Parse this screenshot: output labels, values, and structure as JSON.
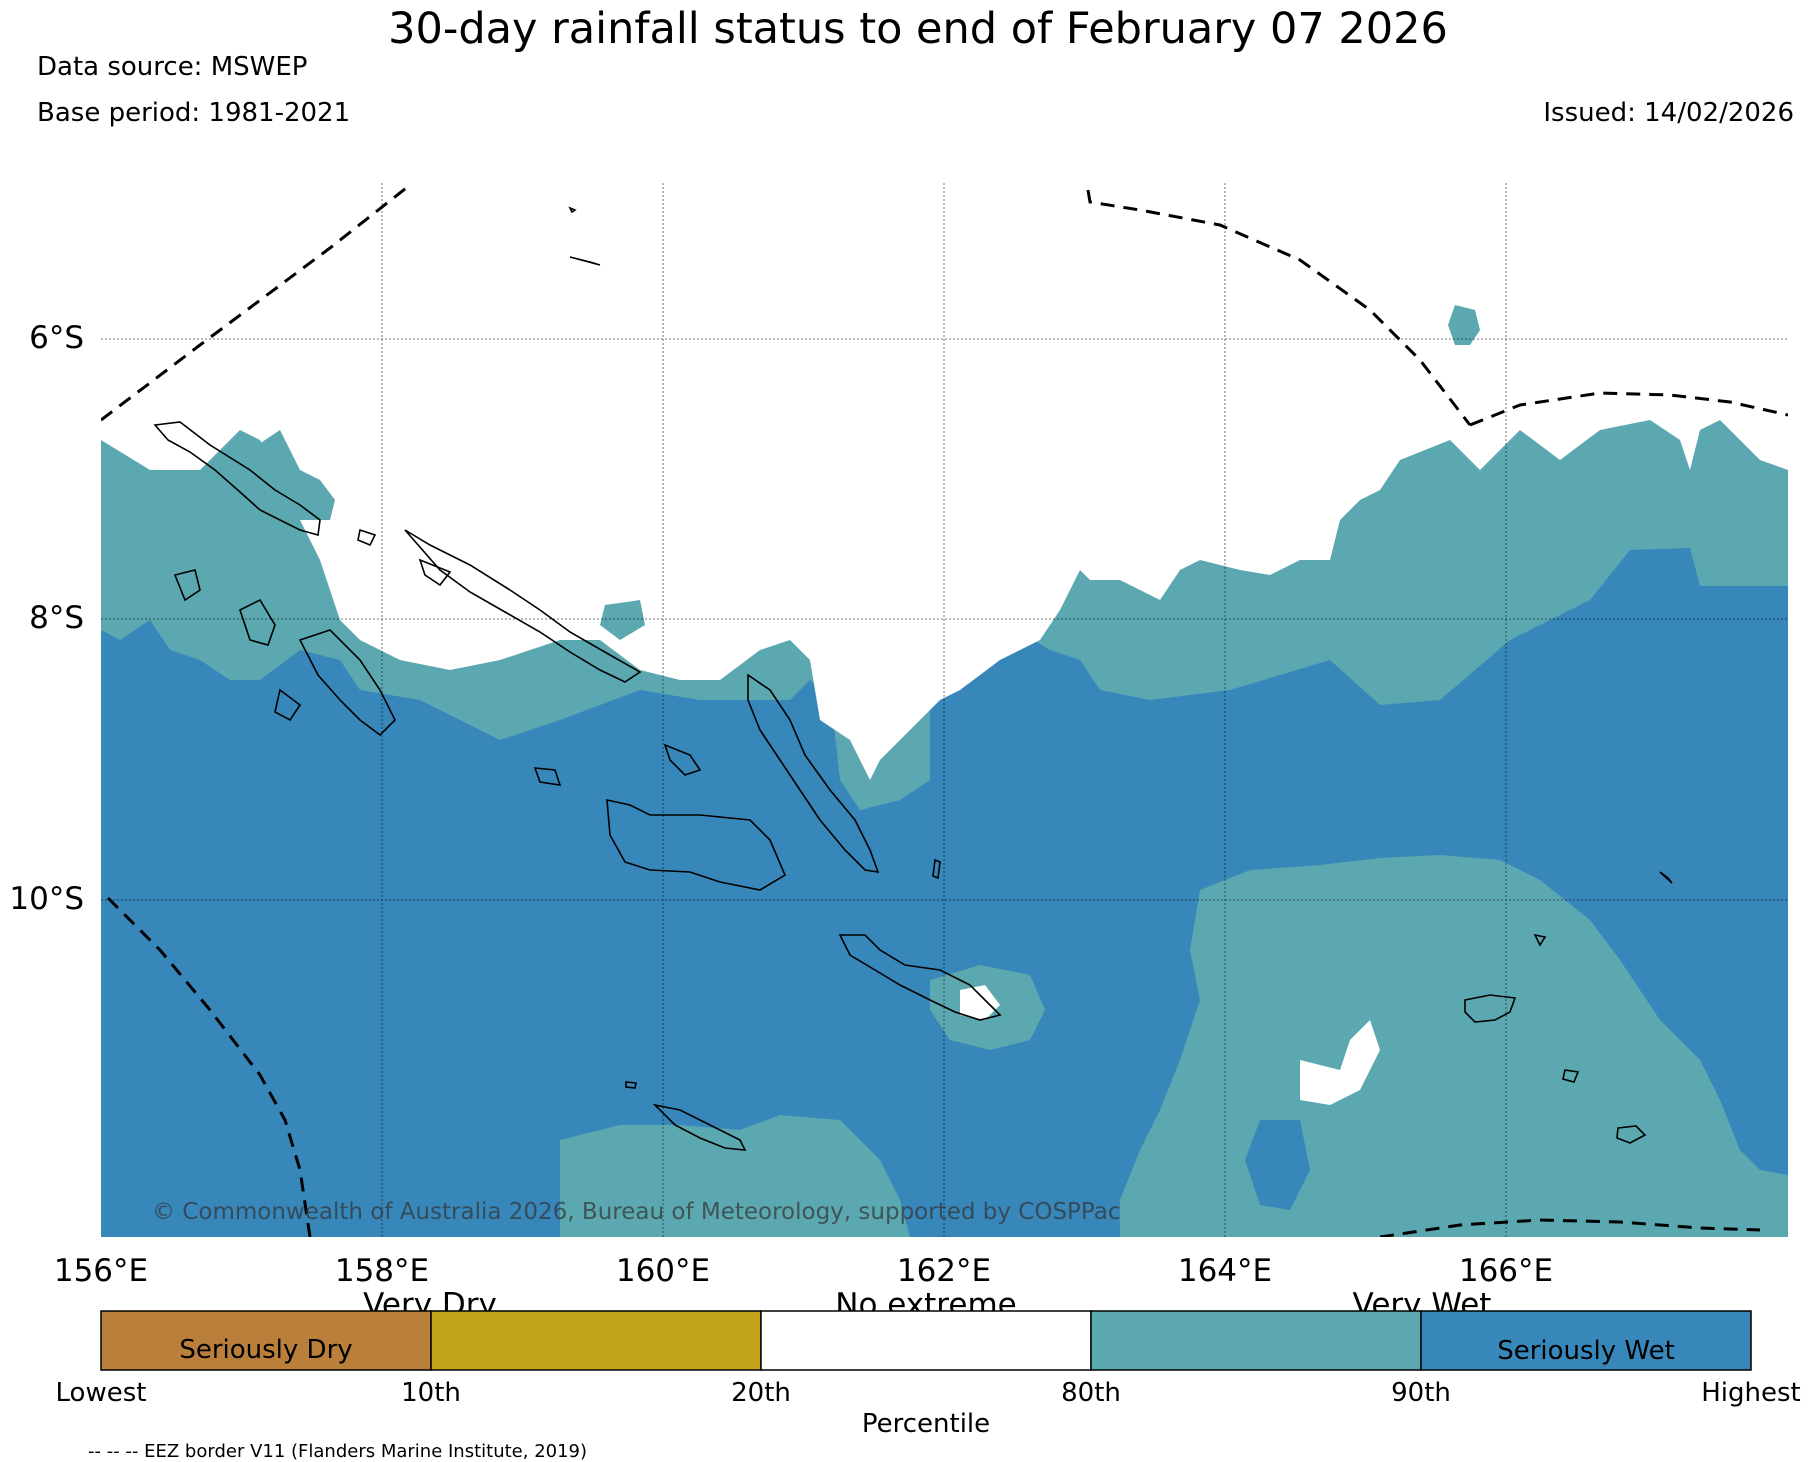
{
  "header": {
    "title": "30-day rainfall status to end of February 07 2026",
    "data_source": "Data source: MSWEP",
    "base_period": "Base period: 1981-2021",
    "issued": "Issued: 14/02/2026"
  },
  "map": {
    "lon_range": [
      156,
      168
    ],
    "lat_range": [
      -4.9,
      -12.4
    ],
    "lat_ticks": [
      "6°S",
      "8°S",
      "10°S"
    ],
    "lon_ticks": [
      "156°E",
      "158°E",
      "160°E",
      "162°E",
      "164°E",
      "166°E"
    ],
    "copyright": "© Commonwealth of Australia 2026, Bureau of Meteorology, supported by COSPPac",
    "colors": {
      "very_wet": "#5ba8b0",
      "seriously_wet": "#3887ba",
      "no_extreme": "#ffffff",
      "coast": "#000000"
    }
  },
  "colorbar": {
    "top_labels": [
      "Very Dry",
      "No extreme",
      "Very Wet"
    ],
    "segments": [
      {
        "label": "Seriously Dry",
        "color": "#b97f3b"
      },
      {
        "label": "",
        "color": "#c4a31d"
      },
      {
        "label": "",
        "color": "#ffffff"
      },
      {
        "label": "",
        "color": "#5ba8b0"
      },
      {
        "label": "Seriously Wet",
        "color": "#3887ba"
      }
    ],
    "tick_labels": [
      "Lowest",
      "10th",
      "20th",
      "80th",
      "90th",
      "Highest"
    ],
    "axis_label": "Percentile"
  },
  "footer": {
    "eez_legend": "-- -- -- EEZ border V11 (Flanders Marine Institute, 2019)"
  }
}
